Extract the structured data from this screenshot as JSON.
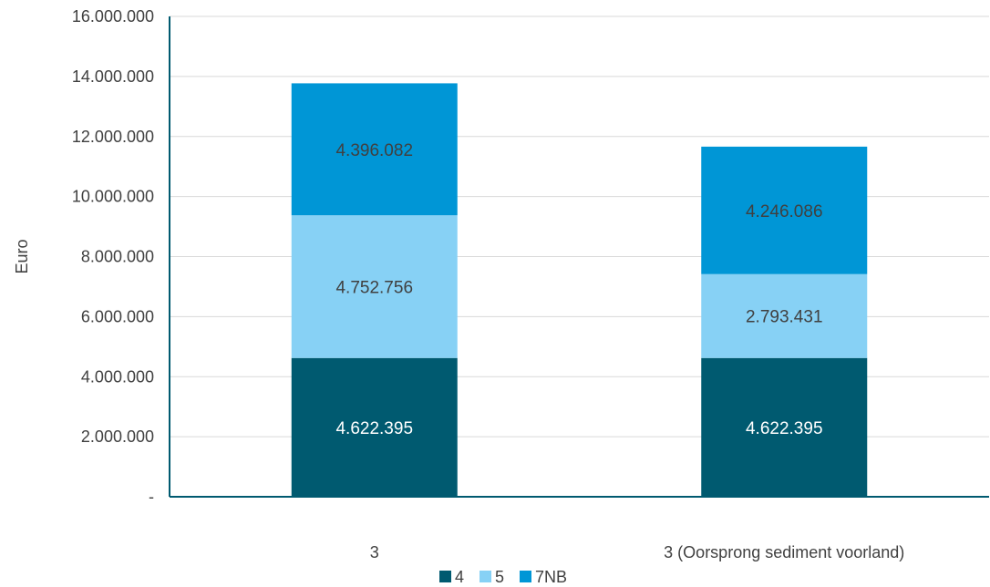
{
  "chart_data": {
    "type": "bar",
    "stacked": true,
    "categories": [
      "3",
      "3 (Oorsprong sediment voorland)"
    ],
    "series": [
      {
        "name": "4",
        "values": [
          4622395,
          4622395
        ],
        "labels": [
          "4.622.395",
          "4.622.395"
        ],
        "color": "#005A70",
        "label_color": "#ffffff"
      },
      {
        "name": "5",
        "values": [
          4752756,
          2793431
        ],
        "labels": [
          "4.752.756",
          "2.793.431"
        ],
        "color": "#87D1F5",
        "label_color": "#404040"
      },
      {
        "name": "7NB",
        "values": [
          4396082,
          4246086
        ],
        "labels": [
          "4.396.082",
          "4.246.086"
        ],
        "color": "#0096D6",
        "label_color": "#404040"
      }
    ],
    "ylabel": "Euro",
    "xlabel": "",
    "ylim": [
      0,
      16000000
    ],
    "yticks": [
      0,
      2000000,
      4000000,
      6000000,
      8000000,
      10000000,
      12000000,
      14000000,
      16000000
    ],
    "ytick_labels": [
      "-",
      "2.000.000",
      "4.000.000",
      "6.000.000",
      "8.000.000",
      "10.000.000",
      "12.000.000",
      "14.000.000",
      "16.000.000"
    ],
    "grid": true,
    "legend_position": "bottom",
    "gridline_color": "#D9D9D9",
    "axis_color": "#005A70"
  }
}
